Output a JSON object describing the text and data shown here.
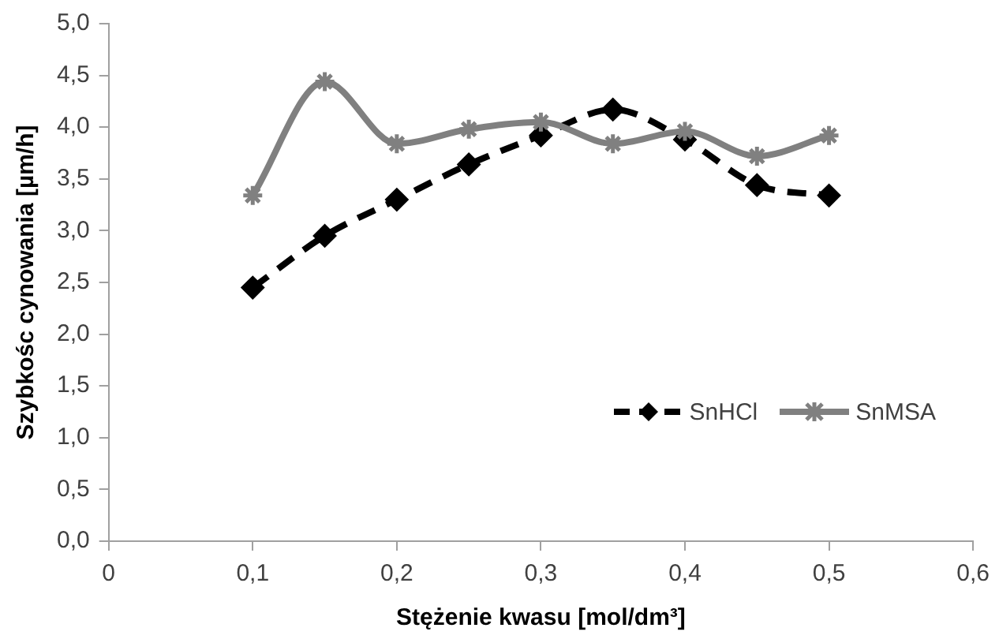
{
  "chart_data": {
    "type": "line",
    "xlabel": "Stężenie kwasu [mol/dm³]",
    "ylabel": "Szybkośc cynowania [µm/h]",
    "xlim": [
      0,
      0.6
    ],
    "xticks": [
      0,
      {
        "value": 0.1,
        "label": "0,1"
      },
      {
        "value": 0.2,
        "label": "0,2"
      },
      {
        "value": 0.3,
        "label": "0,3"
      },
      {
        "value": 0.4,
        "label": "0,4"
      },
      {
        "value": 0.5,
        "label": "0,5"
      },
      {
        "value": 0.6,
        "label": "0,6"
      }
    ],
    "ylim": [
      0,
      5
    ],
    "yticks": [
      {
        "value": 0,
        "label": "0,0"
      },
      {
        "value": 0.5,
        "label": "0,5"
      },
      {
        "value": 1,
        "label": "1,0"
      },
      {
        "value": 1.5,
        "label": "1,5"
      },
      {
        "value": 2,
        "label": "2,0"
      },
      {
        "value": 2.5,
        "label": "2,5"
      },
      {
        "value": 3,
        "label": "3,0"
      },
      {
        "value": 3.5,
        "label": "3,5"
      },
      {
        "value": 4,
        "label": "4,0"
      },
      {
        "value": 4.5,
        "label": "4,5"
      },
      {
        "value": 5,
        "label": "5,0"
      }
    ],
    "x": [
      0.1,
      0.15,
      0.2,
      0.25,
      0.3,
      0.35,
      0.4,
      0.45,
      0.5
    ],
    "series": [
      {
        "name": "SnHCl",
        "color": "#000000",
        "marker": "diamond",
        "line_style": "dashed",
        "values": [
          2.45,
          2.95,
          3.3,
          3.64,
          3.92,
          4.17,
          3.88,
          3.44,
          3.34
        ]
      },
      {
        "name": "SnMSA",
        "color": "#808080",
        "marker": "cross",
        "line_style": "solid",
        "values": [
          3.34,
          4.44,
          3.84,
          3.98,
          4.05,
          3.84,
          3.96,
          3.72,
          3.92
        ]
      }
    ],
    "grid": false,
    "legend": "bottom right"
  }
}
